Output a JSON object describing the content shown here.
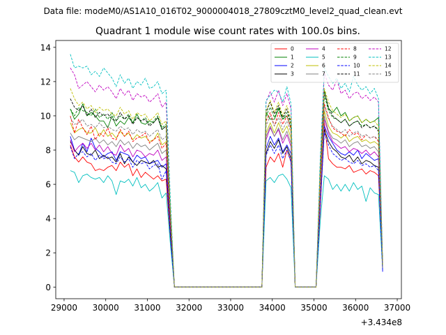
{
  "suptitle": "Data file: modeM0/AS1A10_016T02_9000004018_27809cztM0_level2_quad_clean.evt",
  "chart_data": {
    "type": "line",
    "title": "Quadrant 1 module wise count rates with 100.0s bins.",
    "xlabel": "",
    "ylabel": "",
    "offset_text": "+3.434e8",
    "xlim": [
      28800,
      37100
    ],
    "ylim": [
      -0.68,
      14.4
    ],
    "xticks": [
      29000,
      30000,
      31000,
      32000,
      33000,
      34000,
      35000,
      36000,
      37000
    ],
    "yticks": [
      0,
      2,
      4,
      6,
      8,
      10,
      12,
      14
    ],
    "legend_position": "top-right",
    "legend_columns": 4,
    "x": [
      29150,
      29250,
      29350,
      29450,
      29550,
      29650,
      29750,
      29850,
      29950,
      30050,
      30150,
      30250,
      30350,
      30450,
      30550,
      30650,
      30750,
      30850,
      30950,
      31050,
      31150,
      31250,
      31350,
      31450,
      31550,
      31650,
      31750,
      33750,
      33850,
      33950,
      34050,
      34150,
      34250,
      34350,
      34450,
      34550,
      34650,
      35050,
      35150,
      35250,
      35350,
      35450,
      35550,
      35650,
      35750,
      35850,
      35950,
      36050,
      36150,
      36250,
      36350,
      36450,
      36550,
      36650
    ],
    "series": [
      {
        "name": "0",
        "color": "#ff0000",
        "dash": "solid",
        "values": [
          8.3,
          7.6,
          7.3,
          7.6,
          7.3,
          7.2,
          6.8,
          6.9,
          6.8,
          7.0,
          7.1,
          6.8,
          7.3,
          7.0,
          7.2,
          6.5,
          6.9,
          6.4,
          6.7,
          6.5,
          6.3,
          6.5,
          6.2,
          6.3,
          3.0,
          0,
          0,
          0,
          7.0,
          7.6,
          7.3,
          7.8,
          7.0,
          8.0,
          7.3,
          0,
          0,
          0,
          4.5,
          9.6,
          7.5,
          7.2,
          7.0,
          7.0,
          6.9,
          7.1,
          6.7,
          6.8,
          6.9,
          6.6,
          6.8,
          6.7,
          6.5,
          1.2
        ]
      },
      {
        "name": "1",
        "color": "#008000",
        "dash": "solid",
        "values": [
          10.4,
          9.8,
          10.1,
          10.7,
          10.0,
          10.2,
          10.0,
          9.7,
          9.7,
          9.3,
          10.0,
          9.4,
          9.7,
          9.5,
          9.9,
          9.6,
          10.1,
          9.6,
          9.5,
          9.7,
          9.6,
          9.9,
          9.2,
          9.4,
          4.5,
          0,
          0,
          0,
          10.2,
          9.8,
          9.8,
          10.4,
          9.8,
          10.0,
          9.3,
          0,
          0,
          0,
          6.5,
          11.5,
          10.4,
          10.2,
          10.5,
          10.0,
          10.2,
          9.7,
          9.9,
          10.0,
          9.6,
          9.8,
          9.6,
          9.7,
          9.9,
          1.3
        ]
      },
      {
        "name": "2",
        "color": "#0000ff",
        "dash": "solid",
        "values": [
          8.8,
          8.0,
          7.7,
          8.4,
          7.9,
          8.7,
          8.1,
          7.9,
          7.6,
          7.8,
          7.9,
          7.4,
          7.9,
          7.8,
          7.7,
          7.3,
          7.7,
          7.5,
          7.6,
          7.2,
          7.3,
          7.4,
          7.0,
          7.2,
          3.3,
          0,
          0,
          0,
          8.1,
          8.8,
          8.3,
          8.7,
          7.9,
          8.3,
          7.8,
          0,
          0,
          0,
          5.0,
          9.4,
          8.8,
          8.4,
          8.0,
          7.8,
          7.7,
          7.9,
          7.7,
          8.0,
          7.5,
          7.8,
          7.6,
          7.4,
          7.5,
          0.9
        ]
      },
      {
        "name": "3",
        "color": "#000000",
        "dash": "solid",
        "values": [
          8.5,
          8.0,
          7.7,
          8.2,
          7.8,
          7.7,
          8.0,
          7.5,
          7.7,
          7.5,
          7.6,
          7.3,
          7.8,
          7.2,
          7.6,
          7.3,
          7.1,
          7.4,
          7.3,
          7.2,
          7.4,
          7.0,
          7.1,
          6.9,
          3.2,
          0,
          0,
          0,
          7.8,
          8.5,
          8.1,
          8.6,
          7.8,
          8.2,
          7.5,
          0,
          0,
          0,
          4.8,
          9.2,
          8.5,
          8.1,
          7.9,
          7.6,
          7.5,
          7.7,
          7.3,
          7.6,
          7.2,
          7.4,
          7.3,
          7.1,
          7.0,
          1.1
        ]
      },
      {
        "name": "4",
        "color": "#bf00bf",
        "dash": "solid",
        "values": [
          8.6,
          7.9,
          8.2,
          8.4,
          8.1,
          8.4,
          8.0,
          8.3,
          7.9,
          8.2,
          7.8,
          7.7,
          8.3,
          7.9,
          8.1,
          7.6,
          8.0,
          7.9,
          7.6,
          7.8,
          7.7,
          8.0,
          7.4,
          7.6,
          3.7,
          0,
          0,
          0,
          8.6,
          9.3,
          8.8,
          9.2,
          8.4,
          8.9,
          8.2,
          0,
          0,
          0,
          5.0,
          9.8,
          9.0,
          8.5,
          8.3,
          8.1,
          8.2,
          7.9,
          8.1,
          8.0,
          7.8,
          8.0,
          7.7,
          7.9,
          7.6,
          1.0
        ]
      },
      {
        "name": "5",
        "color": "#00bfbf",
        "dash": "solid",
        "values": [
          6.8,
          6.7,
          6.1,
          6.5,
          6.6,
          6.4,
          6.3,
          6.4,
          6.1,
          6.5,
          6.2,
          5.4,
          6.2,
          6.1,
          6.3,
          5.9,
          6.4,
          5.8,
          6.0,
          5.6,
          5.8,
          6.1,
          5.2,
          5.5,
          2.6,
          0,
          0,
          0,
          6.2,
          6.4,
          6.1,
          6.5,
          6.6,
          6.3,
          5.8,
          0,
          0,
          0,
          3.8,
          6.5,
          6.3,
          5.7,
          6.0,
          5.6,
          6.0,
          5.6,
          6.1,
          5.7,
          5.9,
          5.0,
          5.8,
          5.5,
          5.4,
          1.0
        ]
      },
      {
        "name": "6",
        "color": "#bfbf00",
        "dash": "solid",
        "values": [
          9.6,
          9.0,
          9.2,
          9.3,
          9.0,
          9.0,
          9.3,
          8.8,
          9.2,
          8.8,
          9.0,
          8.7,
          9.1,
          8.8,
          9.0,
          8.6,
          8.9,
          8.7,
          8.8,
          8.5,
          8.6,
          9.0,
          8.3,
          8.5,
          4.0,
          0,
          0,
          0,
          9.0,
          9.6,
          9.0,
          9.6,
          9.0,
          9.4,
          8.7,
          0,
          0,
          0,
          5.8,
          10.3,
          9.4,
          9.0,
          8.9,
          8.7,
          8.9,
          8.5,
          8.7,
          8.8,
          8.5,
          8.6,
          8.4,
          8.5,
          8.3,
          1.1
        ]
      },
      {
        "name": "7",
        "color": "#808080",
        "dash": "solid",
        "values": [
          9.0,
          8.6,
          8.8,
          8.7,
          8.6,
          8.5,
          8.7,
          8.4,
          8.6,
          8.3,
          8.5,
          8.2,
          8.6,
          8.3,
          8.5,
          8.1,
          8.4,
          8.2,
          8.3,
          8.0,
          8.2,
          8.4,
          7.8,
          8.0,
          3.8,
          0,
          0,
          0,
          8.8,
          9.4,
          8.8,
          9.3,
          8.6,
          9.1,
          8.4,
          0,
          0,
          0,
          5.5,
          10.0,
          9.1,
          8.7,
          8.6,
          8.4,
          8.6,
          8.2,
          8.4,
          8.5,
          8.2,
          8.3,
          8.1,
          8.2,
          7.9,
          1.1
        ]
      },
      {
        "name": "8",
        "color": "#ff0000",
        "dash": "dashed",
        "values": [
          10.0,
          9.0,
          9.8,
          9.3,
          8.9,
          9.4,
          8.6,
          9.0,
          8.8,
          9.3,
          8.7,
          8.6,
          9.2,
          8.8,
          9.1,
          8.5,
          8.7,
          8.8,
          9.0,
          8.4,
          8.6,
          8.8,
          8.1,
          8.4,
          3.9,
          0,
          0,
          0,
          9.7,
          10.2,
          9.4,
          10.2,
          9.5,
          10.0,
          9.2,
          0,
          0,
          0,
          6.0,
          10.7,
          9.9,
          9.3,
          9.1,
          9.0,
          8.8,
          9.2,
          8.9,
          9.0,
          8.6,
          8.9,
          8.7,
          8.8,
          8.5,
          1.2
        ]
      },
      {
        "name": "9",
        "color": "#008000",
        "dash": "dashed",
        "values": [
          10.4,
          10.0,
          10.5,
          10.3,
          10.2,
          10.0,
          10.4,
          9.9,
          10.1,
          9.8,
          10.2,
          9.7,
          10.0,
          9.8,
          10.1,
          9.6,
          9.9,
          9.7,
          9.9,
          9.5,
          9.7,
          10.0,
          9.3,
          9.5,
          4.5,
          0,
          0,
          0,
          10.0,
          10.5,
          9.9,
          10.5,
          9.8,
          10.2,
          9.5,
          0,
          0,
          0,
          6.6,
          11.2,
          10.3,
          9.9,
          9.8,
          9.6,
          9.8,
          9.4,
          9.6,
          9.7,
          9.4,
          9.5,
          9.3,
          9.4,
          9.2,
          1.3
        ]
      },
      {
        "name": "10",
        "color": "#0000ff",
        "dash": "dashed",
        "values": [
          8.2,
          7.5,
          7.8,
          7.9,
          7.6,
          7.8,
          7.4,
          7.7,
          7.5,
          7.6,
          7.3,
          7.2,
          7.6,
          7.3,
          7.5,
          7.0,
          7.4,
          7.2,
          7.3,
          6.9,
          7.1,
          7.2,
          6.3,
          6.8,
          3.1,
          0,
          0,
          0,
          7.7,
          8.3,
          7.8,
          8.3,
          7.5,
          8.0,
          7.3,
          0,
          0,
          0,
          4.7,
          9.0,
          8.3,
          7.8,
          7.6,
          7.4,
          7.5,
          7.3,
          7.2,
          7.4,
          7.1,
          7.2,
          7.0,
          7.1,
          6.8,
          0.9
        ]
      },
      {
        "name": "11",
        "color": "#000000",
        "dash": "dashed",
        "values": [
          11.0,
          10.5,
          10.3,
          10.6,
          10.0,
          10.4,
          9.9,
          10.2,
          10.0,
          10.1,
          9.8,
          9.7,
          10.2,
          9.8,
          10.0,
          9.5,
          9.9,
          9.7,
          9.8,
          9.4,
          9.6,
          9.9,
          9.2,
          9.4,
          4.4,
          0,
          0,
          0,
          10.2,
          10.8,
          10.1,
          10.6,
          9.9,
          10.4,
          9.6,
          0,
          0,
          0,
          6.7,
          11.4,
          10.5,
          10.0,
          9.8,
          9.6,
          9.8,
          9.4,
          9.6,
          9.7,
          9.3,
          9.5,
          9.3,
          9.4,
          9.1,
          1.3
        ]
      },
      {
        "name": "12",
        "color": "#bf00bf",
        "dash": "dashed",
        "values": [
          12.8,
          12.4,
          11.6,
          11.8,
          12.0,
          11.7,
          11.4,
          11.8,
          11.5,
          11.7,
          11.4,
          11.0,
          11.6,
          11.2,
          11.5,
          10.9,
          11.3,
          11.1,
          11.2,
          10.8,
          11.0,
          11.3,
          10.5,
          10.8,
          5.0,
          0,
          0,
          0,
          10.8,
          11.4,
          10.8,
          11.5,
          10.6,
          11.3,
          10.4,
          0,
          0,
          0,
          7.2,
          12.5,
          11.8,
          11.5,
          12.1,
          11.3,
          11.5,
          11.0,
          11.3,
          11.4,
          11.0,
          11.2,
          10.9,
          11.1,
          10.8,
          1.4
        ]
      },
      {
        "name": "13",
        "color": "#00bfbf",
        "dash": "dashed",
        "values": [
          13.6,
          12.8,
          12.9,
          12.8,
          12.9,
          12.4,
          12.6,
          12.3,
          12.8,
          12.5,
          12.2,
          11.7,
          12.4,
          11.9,
          12.2,
          11.6,
          12.0,
          11.8,
          12.2,
          11.6,
          11.7,
          12.0,
          11.3,
          11.5,
          5.3,
          0,
          0,
          0,
          10.9,
          11.2,
          11.5,
          11.4,
          10.8,
          11.7,
          10.7,
          0,
          0,
          0,
          7.5,
          12.8,
          12.3,
          11.9,
          12.2,
          11.6,
          11.9,
          11.4,
          12.3,
          11.8,
          11.5,
          11.7,
          11.3,
          11.6,
          11.0,
          1.5
        ]
      },
      {
        "name": "14",
        "color": "#bfbf00",
        "dash": "dashed",
        "values": [
          11.6,
          11.0,
          10.6,
          10.8,
          10.4,
          10.6,
          10.2,
          10.5,
          10.3,
          10.4,
          10.1,
          10.0,
          10.5,
          10.1,
          10.3,
          9.8,
          10.2,
          10.0,
          10.1,
          9.7,
          9.9,
          10.2,
          9.5,
          9.7,
          4.6,
          0,
          0,
          0,
          10.3,
          10.9,
          10.2,
          10.8,
          10.0,
          10.6,
          9.8,
          0,
          0,
          0,
          6.9,
          11.6,
          10.8,
          10.3,
          10.1,
          9.9,
          10.1,
          9.7,
          9.9,
          10.0,
          9.6,
          9.8,
          9.6,
          9.7,
          9.4,
          1.3
        ]
      },
      {
        "name": "15",
        "color": "#808080",
        "dash": "dashed",
        "values": [
          9.9,
          9.5,
          9.6,
          9.8,
          9.4,
          9.5,
          9.3,
          9.6,
          9.3,
          9.4,
          9.2,
          9.1,
          9.4,
          9.2,
          9.3,
          8.9,
          9.2,
          9.0,
          9.1,
          8.8,
          9.0,
          9.2,
          8.6,
          8.8,
          4.2,
          0,
          0,
          0,
          9.4,
          10.0,
          9.4,
          9.9,
          9.2,
          9.7,
          9.0,
          0,
          0,
          0,
          6.2,
          10.6,
          9.8,
          9.4,
          9.2,
          9.0,
          9.2,
          8.8,
          9.0,
          9.1,
          8.8,
          8.9,
          8.7,
          8.8,
          8.6,
          1.2
        ]
      }
    ]
  }
}
